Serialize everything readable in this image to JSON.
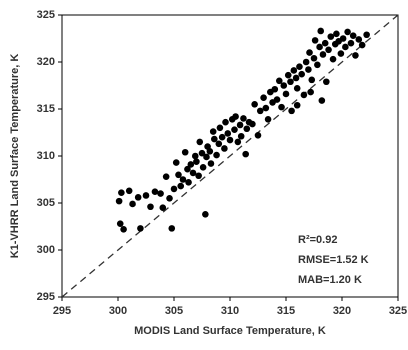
{
  "chart_data": {
    "type": "scatter",
    "x_label": "MODIS Land Surface Temperature, K",
    "y_label": "K1-VHRR  Land Surface Temperature, K",
    "annotations": [
      "R²=0.92",
      "RMSE=1.52 K",
      "MAB=1.20 K"
    ],
    "color": "#000000",
    "xlim": [
      295,
      325
    ],
    "ylim": [
      295,
      325
    ],
    "xticks": [
      295,
      300,
      305,
      310,
      315,
      320,
      325
    ],
    "yticks": [
      295,
      300,
      305,
      310,
      315,
      320,
      325
    ],
    "x": [
      300.1,
      300.3,
      300.2,
      300.5,
      301.0,
      301.3,
      301.8,
      302.0,
      302.5,
      302.9,
      303.3,
      303.8,
      304.0,
      304.3,
      304.6,
      304.8,
      305.0,
      305.2,
      305.4,
      305.6,
      305.8,
      306.0,
      306.2,
      306.3,
      306.5,
      306.7,
      306.9,
      307.0,
      307.2,
      307.3,
      307.5,
      307.6,
      307.8,
      307.9,
      308.0,
      308.2,
      308.3,
      308.5,
      308.6,
      308.8,
      309.0,
      309.1,
      309.3,
      309.5,
      309.6,
      309.8,
      310.0,
      310.2,
      310.4,
      310.5,
      310.7,
      310.9,
      311.0,
      311.2,
      311.4,
      311.5,
      311.7,
      312.0,
      312.2,
      312.5,
      312.7,
      313.0,
      313.2,
      313.4,
      313.6,
      313.8,
      314.0,
      314.2,
      314.4,
      314.6,
      314.8,
      315.0,
      315.2,
      315.4,
      315.5,
      315.7,
      315.9,
      316.0,
      316.2,
      316.4,
      316.6,
      316.8,
      317.0,
      317.1,
      317.3,
      317.5,
      317.6,
      317.8,
      318.0,
      318.1,
      318.3,
      318.5,
      318.6,
      318.8,
      319.0,
      319.2,
      319.4,
      319.5,
      319.7,
      319.9,
      320.1,
      320.3,
      320.5,
      320.8,
      321.0,
      321.2,
      321.5,
      321.8,
      322.2,
      317.2,
      318.2,
      316.0
    ],
    "values": [
      305.2,
      306.1,
      302.8,
      302.2,
      306.3,
      304.9,
      305.6,
      302.3,
      305.8,
      304.6,
      306.2,
      306.0,
      304.5,
      307.8,
      305.5,
      302.3,
      306.5,
      309.3,
      308.0,
      306.8,
      307.5,
      310.4,
      308.6,
      307.2,
      309.1,
      308.2,
      310.0,
      309.4,
      307.9,
      311.5,
      310.3,
      308.8,
      303.8,
      309.9,
      311.0,
      310.5,
      309.2,
      312.6,
      311.8,
      310.1,
      311.3,
      313.0,
      312.0,
      310.8,
      313.6,
      312.4,
      311.7,
      313.9,
      312.8,
      314.2,
      311.5,
      313.3,
      312.1,
      314.0,
      310.2,
      312.9,
      313.6,
      313.4,
      315.5,
      312.2,
      314.8,
      316.2,
      315.1,
      313.9,
      316.8,
      315.7,
      317.1,
      316.0,
      318.0,
      315.2,
      317.5,
      316.6,
      318.6,
      317.9,
      314.8,
      319.1,
      318.3,
      317.2,
      319.5,
      318.7,
      316.5,
      320.0,
      319.2,
      321.0,
      318.1,
      320.4,
      322.3,
      319.7,
      321.6,
      323.3,
      320.8,
      322.0,
      317.9,
      321.3,
      322.7,
      320.3,
      321.9,
      323.0,
      322.2,
      320.9,
      322.5,
      321.6,
      323.2,
      322.0,
      322.8,
      320.7,
      322.4,
      321.8,
      322.9,
      316.8,
      315.9,
      315.4
    ]
  }
}
